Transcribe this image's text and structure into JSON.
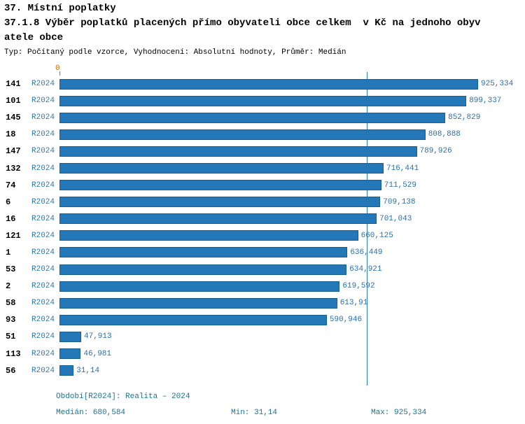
{
  "chart_data": {
    "type": "bar",
    "orientation": "horizontal",
    "title": "37. Místní poplatky",
    "subtitle": "37.1.8 Výběr poplatků placených přímo obyvateli obce celkem  v Kč na jednoho obyvatele obce",
    "meta": "Typ: Počítaný podle vzorce, Vyhodnocení: Absolutní hodnoty, Průměr: Medián",
    "zero_label": "0",
    "period_label": "R2024",
    "categories": [
      "141",
      "101",
      "145",
      "18",
      "147",
      "132",
      "74",
      "6",
      "16",
      "121",
      "1",
      "53",
      "2",
      "58",
      "93",
      "51",
      "113",
      "56"
    ],
    "values": [
      925.334,
      899.337,
      852.829,
      808.888,
      789.926,
      716.441,
      711.529,
      709.138,
      701.043,
      660.125,
      636.449,
      634.921,
      619.592,
      613.91,
      590.946,
      47.913,
      46.981,
      31.14
    ],
    "value_labels": [
      "925,334",
      "899,337",
      "852,829",
      "808,888",
      "789,926",
      "716,441",
      "711,529",
      "709,138",
      "701,043",
      "660,125",
      "636,449",
      "634,921",
      "619,592",
      "613,91",
      "590,946",
      "47,913",
      "46,981",
      "31,14"
    ],
    "xmin": 0,
    "xmax": 925.334,
    "median": 680.584,
    "grid": false,
    "bar_color": "#2478b7",
    "bar_border_color": "#17608f",
    "median_line_color": "#2e7cb8",
    "footer": {
      "period": "Období[R2024]: Realita – 2024",
      "median": "Medián: 680,584",
      "min": "Min: 31,14",
      "max": "Max: 925,334"
    }
  }
}
